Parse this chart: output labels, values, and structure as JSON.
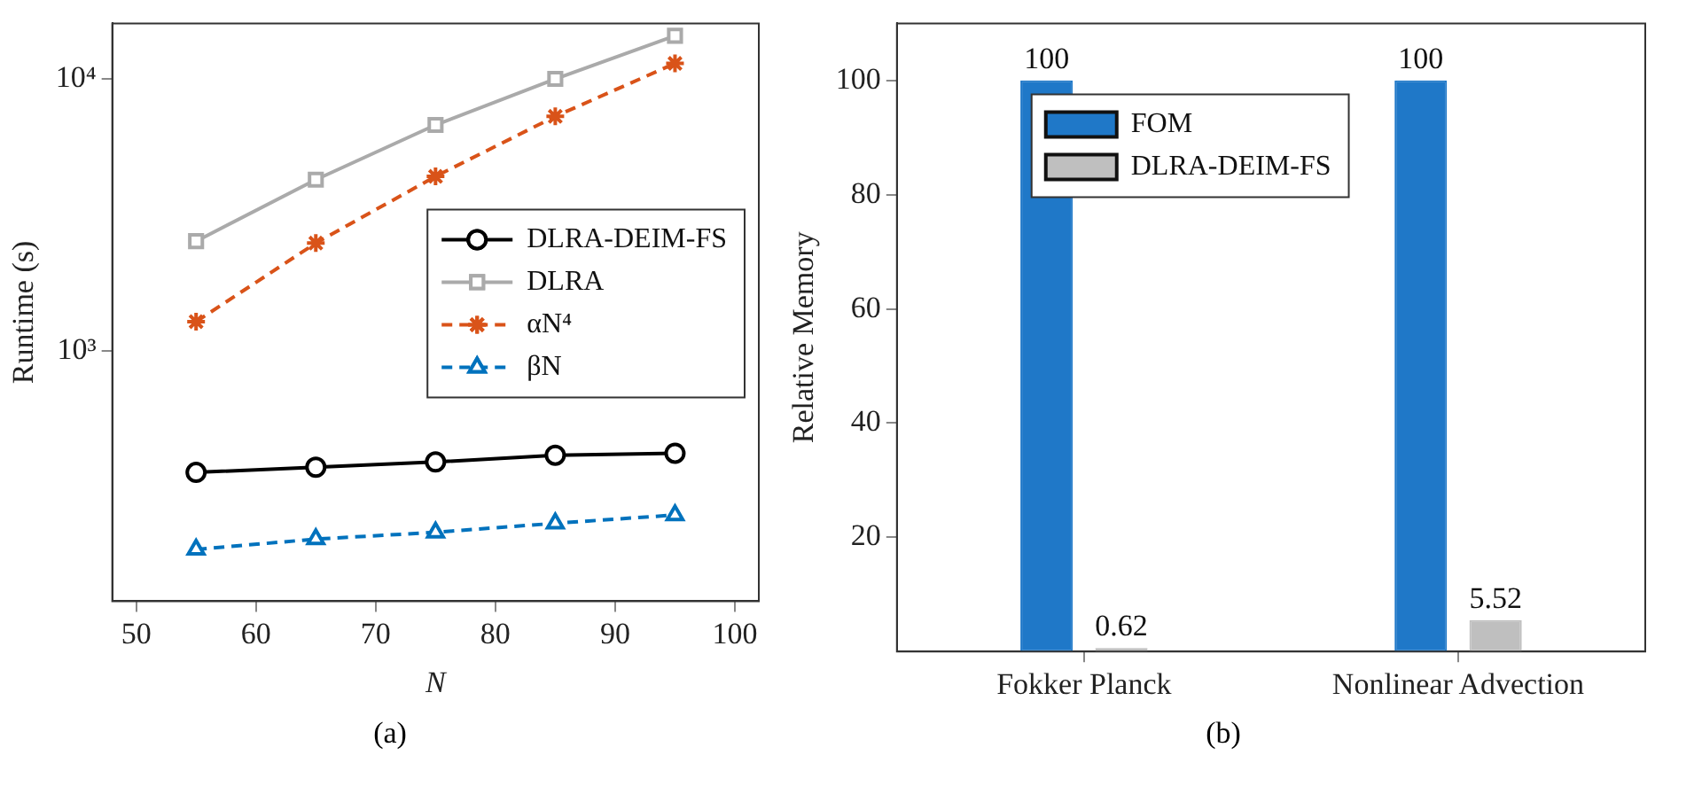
{
  "chart_data": [
    {
      "type": "line",
      "xlabel": "N",
      "ylabel": "Runtime (s)",
      "log": "y",
      "x": [
        55,
        65,
        75,
        85,
        95
      ],
      "xlim": [
        48,
        102
      ],
      "xticks": [
        50,
        60,
        70,
        80,
        90,
        100
      ],
      "ylim": [
        120,
        16000
      ],
      "yticks": [
        {
          "value": 1000,
          "label": "10³"
        },
        {
          "value": 10000,
          "label": "10⁴"
        }
      ],
      "grid": false,
      "legend": "right",
      "annotations": [
        "(a)"
      ],
      "series": [
        {
          "name": "DLRA-DEIM-FS",
          "color": "#000000",
          "marker": "circle",
          "line_style": "solid",
          "values": [
            357,
            373,
            390,
            413,
            420
          ]
        },
        {
          "name": "DLRA",
          "color": "#aaaaaa",
          "marker": "square",
          "line_style": "solid",
          "values": [
            2530,
            4260,
            6770,
            10000,
            14400
          ]
        },
        {
          "name": "αN⁴",
          "color": "#d95319",
          "marker": "cross",
          "line_style": "dashed",
          "values": [
            1280,
            2490,
            4380,
            7280,
            11400
          ]
        },
        {
          "name": "βN",
          "color": "#0072bd",
          "marker": "triangle",
          "line_style": "dashed",
          "values": [
            186,
            203,
            215,
            232,
            249
          ]
        }
      ]
    },
    {
      "type": "bar",
      "ylabel": "Relative Memory",
      "categories": [
        "Fokker Planck",
        "Nonlinear Advection"
      ],
      "ylim": [
        0,
        110
      ],
      "yticks": [
        20,
        40,
        60,
        80,
        100
      ],
      "grid": false,
      "legend": "top",
      "data_labels": true,
      "annotations": [
        "(b)"
      ],
      "series": [
        {
          "name": "FOM",
          "color": "#1f78c8",
          "values": [
            100,
            100
          ]
        },
        {
          "name": "DLRA-DEIM-FS",
          "color": "#bfbfbf",
          "values": [
            0.62,
            5.52
          ]
        }
      ]
    }
  ]
}
